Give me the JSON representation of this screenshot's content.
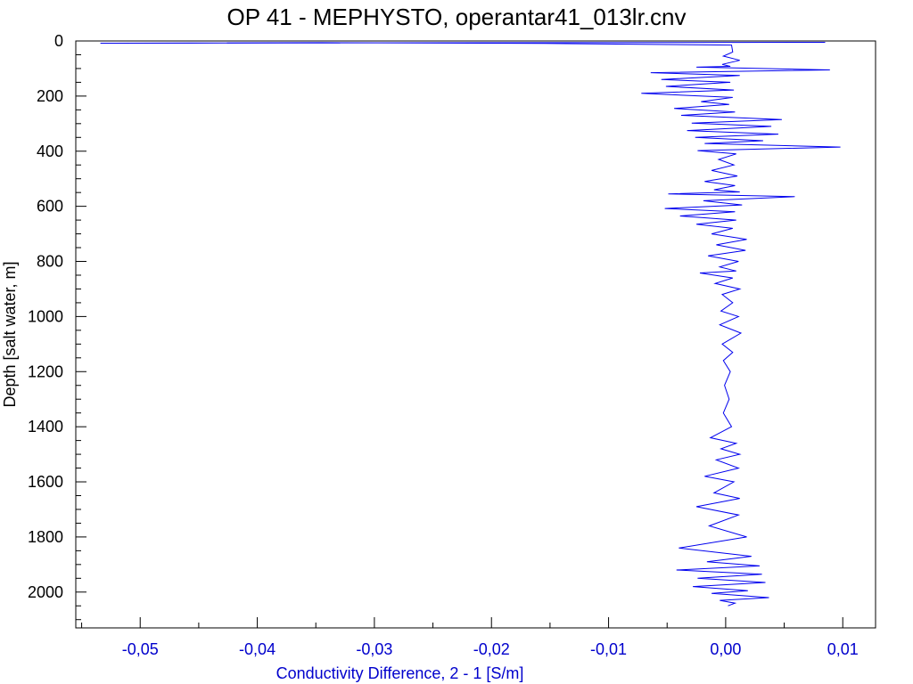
{
  "chart_data": {
    "type": "line",
    "title": "OP 41 - MEPHYSTO, operantar41_013lr.cnv",
    "xlabel": "Conductivity Difference, 2 - 1 [S/m]",
    "ylabel": "Depth [salt water, m]",
    "xlim": [
      -0.0555,
      0.0128
    ],
    "ylim": [
      2130,
      0
    ],
    "y_inverted": true,
    "grid": false,
    "x_ticks": [
      -0.05,
      -0.04,
      -0.03,
      -0.02,
      -0.01,
      0.0,
      0.01
    ],
    "x_tick_labels": [
      "-0,05",
      "-0,04",
      "-0,03",
      "-0,02",
      "-0,01",
      "0,00",
      "0,01"
    ],
    "y_ticks": [
      0,
      200,
      400,
      600,
      800,
      1000,
      1200,
      1400,
      1600,
      1800,
      2000
    ],
    "y_tick_labels": [
      "0",
      "200",
      "400",
      "600",
      "800",
      "1000",
      "1200",
      "1400",
      "1600",
      "1800",
      "2000"
    ],
    "colors": {
      "series": "#0000ee",
      "axis_text_x": "#0000cc",
      "axis": "#000000"
    },
    "series": [
      {
        "x": [
          0.0085,
          -0.0534,
          -0.0345,
          -0.0155,
          0.0005,
          0.0006,
          -0.0002,
          0.0012,
          -0.0003,
          0.0004,
          -0.0025,
          0.0089,
          -0.0064,
          0.0012,
          -0.0055,
          0.0004,
          -0.0051,
          0.0007,
          -0.0072,
          0.0006,
          -0.0021,
          0.0003,
          -0.0044,
          0.0008,
          -0.0038,
          0.0048,
          -0.0029,
          0.0039,
          -0.0033,
          0.0045,
          -0.0026,
          0.0032,
          -0.0018,
          0.0098,
          -0.0024,
          0.0009,
          -0.0006,
          0.0007,
          -0.0012,
          0.001,
          -0.0018,
          0.0008,
          -0.001,
          0.0012,
          -0.0049,
          0.0059,
          -0.0019,
          0.0014,
          -0.0052,
          0.0008,
          -0.0039,
          0.0009,
          -0.0025,
          0.0006,
          -0.0012,
          0.0018,
          -0.0008,
          0.0017,
          -0.0015,
          0.0011,
          -0.0005,
          0.0009,
          -0.0022,
          0.0006,
          -0.0009,
          0.0012,
          -0.0003,
          0.0006,
          -0.0004,
          0.0011,
          -0.0005,
          0.0013,
          -0.0003,
          0.0006,
          -0.0002,
          0.0004,
          -0.0001,
          0.0003,
          -0.0002,
          0.0005,
          -0.0013,
          0.0009,
          -0.0004,
          0.0012,
          -0.0008,
          0.0011,
          -0.0018,
          0.0007,
          -0.001,
          0.0012,
          -0.0025,
          0.0011,
          -0.0014,
          0.0018,
          -0.004,
          0.0022,
          -0.0016,
          0.0029,
          -0.0042,
          0.0031,
          -0.0024,
          0.0034,
          -0.0028,
          0.0019,
          -0.0012,
          0.0037,
          -0.0005,
          0.0008,
          0.0002
        ],
        "y": [
          5,
          8,
          6,
          9,
          15,
          40,
          55,
          70,
          85,
          92,
          95,
          105,
          115,
          125,
          140,
          150,
          165,
          178,
          190,
          205,
          220,
          230,
          245,
          258,
          270,
          285,
          298,
          310,
          325,
          338,
          350,
          362,
          372,
          385,
          398,
          410,
          430,
          450,
          470,
          490,
          510,
          525,
          540,
          548,
          555,
          565,
          580,
          595,
          608,
          620,
          635,
          650,
          665,
          680,
          700,
          720,
          740,
          760,
          780,
          800,
          820,
          835,
          842,
          860,
          880,
          900,
          920,
          950,
          980,
          1000,
          1030,
          1060,
          1100,
          1130,
          1160,
          1200,
          1250,
          1300,
          1350,
          1400,
          1440,
          1460,
          1480,
          1500,
          1520,
          1550,
          1580,
          1600,
          1640,
          1660,
          1690,
          1720,
          1760,
          1800,
          1840,
          1870,
          1890,
          1905,
          1920,
          1935,
          1950,
          1965,
          1980,
          1995,
          2005,
          2020,
          2030,
          2040,
          2050
        ]
      }
    ]
  }
}
